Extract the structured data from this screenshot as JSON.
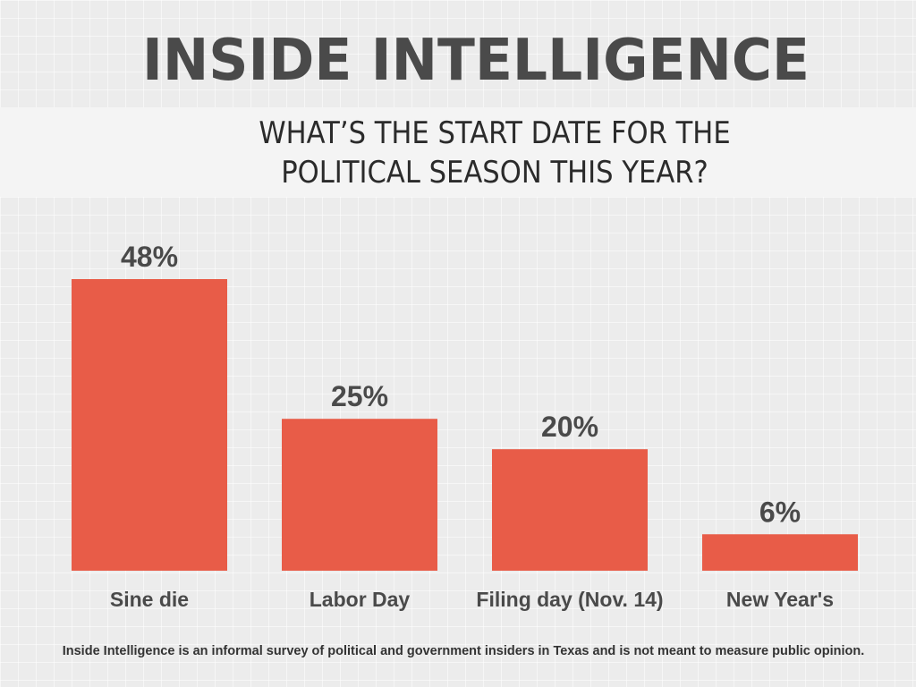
{
  "header": {
    "title": "INSIDE INTELLIGENCE"
  },
  "chart_data": {
    "type": "bar",
    "title": "WHAT’S THE START DATE FOR THE POLITICAL SEASON THIS YEAR?",
    "title_lines": [
      "WHAT’S THE START DATE FOR THE",
      "POLITICAL SEASON THIS YEAR?"
    ],
    "categories": [
      "Sine die",
      "Labor Day",
      "Filing day (Nov. 14)",
      "New Year's"
    ],
    "values": [
      48,
      25,
      20,
      6
    ],
    "data_labels": [
      "48%",
      "25%",
      "20%",
      "6%"
    ],
    "xlabel": "",
    "ylabel": "",
    "ylim": [
      0,
      48
    ],
    "bar_color": "#e85c48",
    "grid": false,
    "legend": "none"
  },
  "footer": {
    "note": "Inside Intelligence is an informal survey of political and government insiders in Texas and is not meant to measure public opinion."
  }
}
